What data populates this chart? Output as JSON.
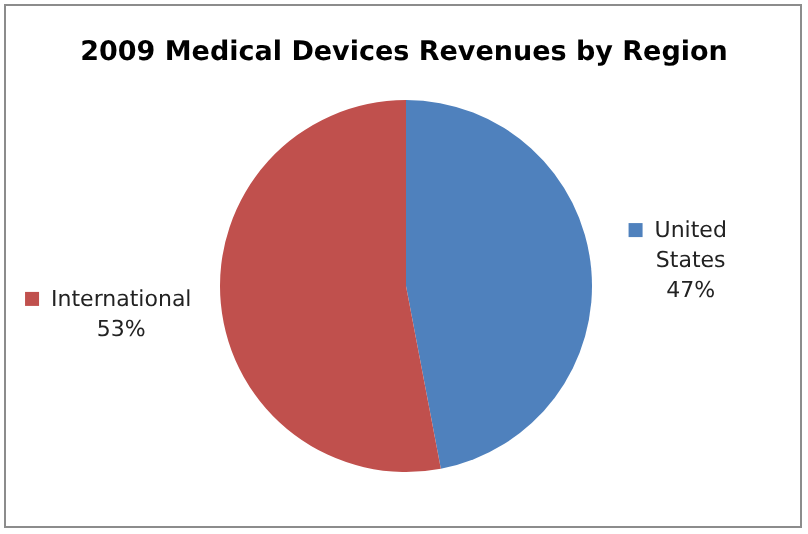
{
  "chart_data": {
    "type": "pie",
    "title": "2009 Medical Devices Revenues by Region",
    "categories": [
      "United States",
      "International"
    ],
    "values": [
      47,
      53
    ],
    "colors": [
      "#4f81bd",
      "#c0504d"
    ],
    "value_labels": [
      "47%",
      "53%"
    ],
    "legend": "top left"
  }
}
